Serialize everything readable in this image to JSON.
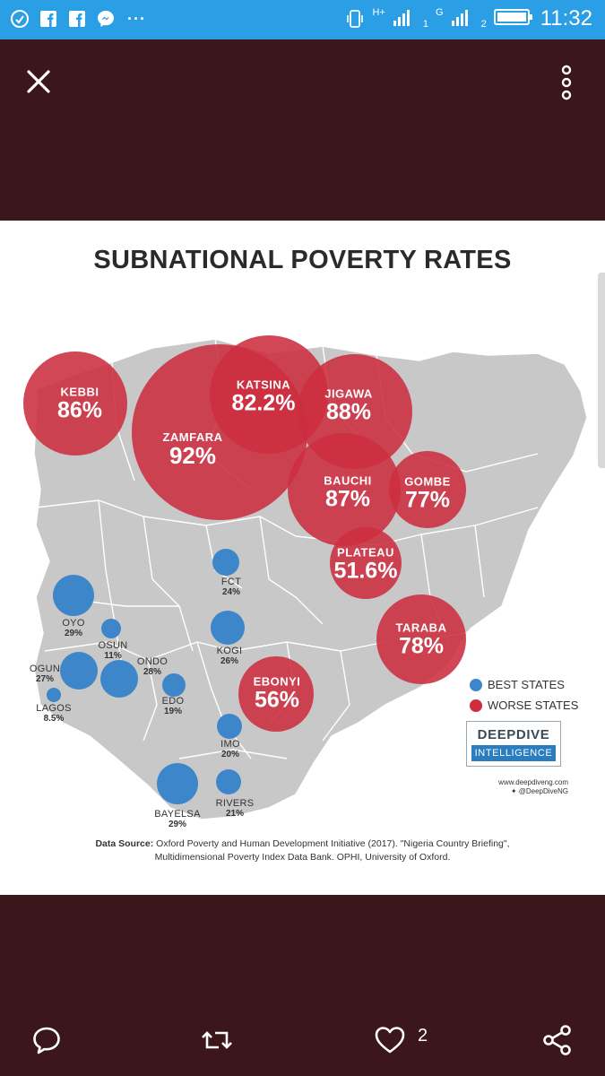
{
  "status_bar": {
    "time": "11:32",
    "overflow_indicator": "···",
    "signal_label_1": "H+",
    "signal_label_2": "G",
    "sim_1": "1",
    "sim_2": "2",
    "icons": [
      "chat-app-icon",
      "facebook-icon",
      "facebook-icon",
      "messenger-icon",
      "vibrate-icon",
      "signal-icon",
      "battery-icon"
    ]
  },
  "toolbar": {
    "close_icon": "close-icon",
    "menu_icon": "more-vert-icon"
  },
  "infographic": {
    "title": "SUBNATIONAL POVERTY RATES",
    "worse_states": [
      {
        "name": "KEBBI",
        "rate": "86%"
      },
      {
        "name": "ZAMFARA",
        "rate": "92%"
      },
      {
        "name": "KATSINA",
        "rate": "82.2%"
      },
      {
        "name": "JIGAWA",
        "rate": "88%"
      },
      {
        "name": "BAUCHI",
        "rate": "87%"
      },
      {
        "name": "GOMBE",
        "rate": "77%"
      },
      {
        "name": "PLATEAU",
        "rate": "51.6%"
      },
      {
        "name": "TARABA",
        "rate": "78%"
      },
      {
        "name": "EBONYI",
        "rate": "56%"
      }
    ],
    "best_states": [
      {
        "name": "FCT",
        "rate": "24%"
      },
      {
        "name": "OYO",
        "rate": "29%"
      },
      {
        "name": "OSUN",
        "rate": "11%"
      },
      {
        "name": "KOGI",
        "rate": "26%"
      },
      {
        "name": "ONDO",
        "rate": "28%"
      },
      {
        "name": "OGUN",
        "rate": "27%"
      },
      {
        "name": "EDO",
        "rate": "19%"
      },
      {
        "name": "LAGOS",
        "rate": "8.5%"
      },
      {
        "name": "IMO",
        "rate": "20%"
      },
      {
        "name": "BAYELSA",
        "rate": "29%"
      },
      {
        "name": "RIVERS",
        "rate": "21%"
      }
    ],
    "legend": {
      "best": "BEST STATES",
      "worse": "WORSE STATES",
      "best_color": "#3d86c9",
      "worse_color": "#cc2e3f"
    },
    "brand": {
      "name_top": "DEEPDIVE",
      "name_bottom": "INTELLIGENCE",
      "website": "www.deepdiveng.com",
      "twitter": "@DeepDiveNG"
    },
    "source": {
      "label": "Data Source:",
      "line1": " Oxford Poverty and Human Development Initiative (2017). \"Nigeria Country Briefing\",",
      "line2": "Multidimensional Poverty Index Data Bank. OPHI, University of Oxford."
    }
  },
  "actions": {
    "reply_icon": "reply-icon",
    "retweet_icon": "retweet-icon",
    "like_icon": "heart-icon",
    "like_count": "2",
    "share_icon": "share-icon"
  }
}
